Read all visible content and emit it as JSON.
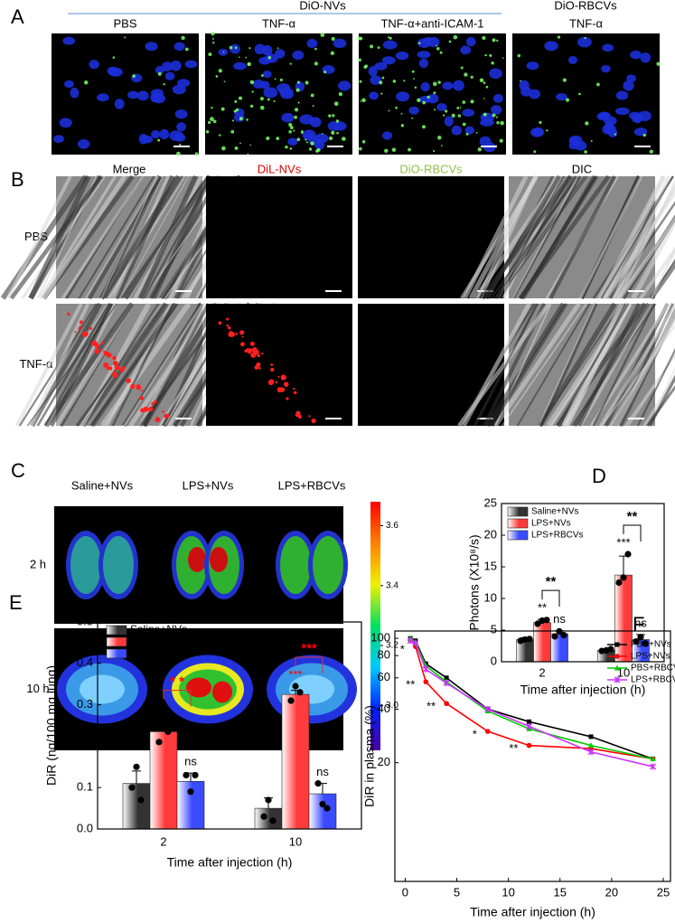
{
  "panel_labels": [
    "A",
    "B",
    "C"
  ],
  "panel_a": {
    "groups": [
      "DiO-NVs",
      "DiO-RBCVs"
    ],
    "columns": [
      "PBS",
      "TNF-α",
      "TNF-α+anti-ICAM-1",
      "TNF-α"
    ]
  },
  "panel_b": {
    "columns": [
      "Merge",
      "DiL-NVs",
      "DiO-RBCVs",
      "DIC"
    ],
    "rows": [
      "PBS",
      "TNF-α"
    ]
  },
  "panel_c": {
    "columns": [
      "Saline+NVs",
      "LPS+NVs",
      "LPS+RBCVs"
    ],
    "rows": [
      "2 h",
      "10 h"
    ],
    "clim": [
      2.85,
      3.68
    ],
    "colorbar_ticks": [
      {
        "value": 3.0,
        "label": "3.0"
      },
      3.2,
      3.4,
      3.6
    ]
  },
  "chart_data": [
    {
      "type": "bar",
      "label": "D",
      "y_label": "Photons (X10⁸/s)",
      "x_label": "Time after injection (h)",
      "categories": [
        "2",
        "10"
      ],
      "ylim": [
        0,
        25
      ],
      "yticks": [
        0,
        5,
        10,
        15,
        20,
        25
      ],
      "legend": "upper left",
      "series": [
        {
          "name": "Saline+NVs",
          "color": "#333333",
          "values": [
            3.5,
            1.8
          ],
          "errors": [
            0.3,
            0.2
          ],
          "points": [
            [
              3.3,
              3.5,
              3.6
            ],
            [
              1.7,
              1.8,
              2.0
            ]
          ],
          "significance": [
            null,
            null
          ]
        },
        {
          "name": "LPS+NVs",
          "color": "#ff3b3b",
          "values": [
            6.2,
            13.7
          ],
          "errors": [
            0.5,
            3.0
          ],
          "points": [
            [
              6.0,
              6.5,
              6.6
            ],
            [
              12.5,
              13.3,
              17.0
            ]
          ],
          "significance": [
            "**",
            "***"
          ]
        },
        {
          "name": "LPS+RBCVs",
          "color": "#3b4bff",
          "values": [
            4.4,
            3.5
          ],
          "errors": [
            0.5,
            0.8
          ],
          "points": [
            [
              4.0,
              4.8,
              4.2
            ],
            [
              3.2,
              3.9,
              2.9
            ]
          ],
          "significance": [
            "ns",
            "ns"
          ]
        }
      ],
      "brackets": [
        "**",
        "**"
      ],
      "star_color": "#000000"
    },
    {
      "type": "bar",
      "label": "E",
      "y_label": "DiR (ng/100 mg lung)",
      "x_label": "Time after injection (h)",
      "categories": [
        "2",
        "10"
      ],
      "ylim": [
        0,
        0.5
      ],
      "yticks": [
        {
          "value": 0,
          "label": "0.0"
        },
        0.1,
        0.2,
        0.3,
        0.4,
        0.5
      ],
      "legend": "upper left",
      "series": [
        {
          "name": "Saline+NVs",
          "color": "#333333",
          "values": [
            0.11,
            0.05
          ],
          "errors": [
            0.03,
            0.025
          ],
          "points": [
            [
              0.1,
              0.15,
              0.07
            ],
            [
              0.03,
              0.07,
              0.02
            ]
          ],
          "significance": [
            null,
            null
          ]
        },
        {
          "name": "LPS+NVs",
          "color": "#ff3b3b",
          "values": [
            0.235,
            0.325
          ],
          "errors": [
            0.025,
            0.01
          ],
          "points": [
            [
              0.21,
              0.265,
              0.235
            ],
            [
              0.31,
              0.345,
              0.33
            ]
          ],
          "significance": [
            null,
            "***"
          ]
        },
        {
          "name": "LPS+RBCVs",
          "color": "#3b4bff",
          "values": [
            0.115,
            0.085
          ],
          "errors": [
            0.02,
            0.025
          ],
          "points": [
            [
              0.13,
              0.09,
              0.13
            ],
            [
              0.11,
              0.06,
              0.05
            ]
          ],
          "significance": [
            "ns",
            "ns"
          ]
        }
      ],
      "brackets": [
        "* *",
        "***"
      ],
      "star_color": "#ff0000"
    },
    {
      "type": "line",
      "label": "F",
      "y_label": "DiR in plasma (%)",
      "x_label": "Time after injection (h)",
      "x": [
        0.5,
        1,
        2,
        4,
        8,
        12,
        18,
        24
      ],
      "xlim": [
        -1,
        25.7
      ],
      "xticks": [
        0,
        5,
        10,
        15,
        20,
        25
      ],
      "ylim": [
        4.3,
        110
      ],
      "yticks": [
        20,
        40,
        60,
        80,
        100
      ],
      "log_y": true,
      "legend": "upper right",
      "series": [
        {
          "name": "PBS+NVs",
          "color": "#000000",
          "marker": "square",
          "values": [
            100,
            97,
            72,
            60,
            40,
            34,
            28,
            21
          ]
        },
        {
          "name": "LPS+NVs",
          "color": "#ff0000",
          "marker": "circle",
          "values": [
            98,
            90,
            57,
            43,
            30,
            25,
            24,
            21
          ]
        },
        {
          "name": "PBS+RBCVs",
          "color": "#00cc00",
          "marker": "triangle",
          "values": [
            100,
            95,
            70,
            57,
            39,
            31,
            25,
            21
          ]
        },
        {
          "name": "LPS+RBCVs",
          "color": "#cc33ff",
          "marker": "star",
          "values": [
            97,
            94,
            67,
            56,
            40,
            32,
            23,
            19
          ]
        }
      ],
      "significance": [
        "*",
        "**",
        "**",
        "*",
        "**"
      ]
    }
  ]
}
